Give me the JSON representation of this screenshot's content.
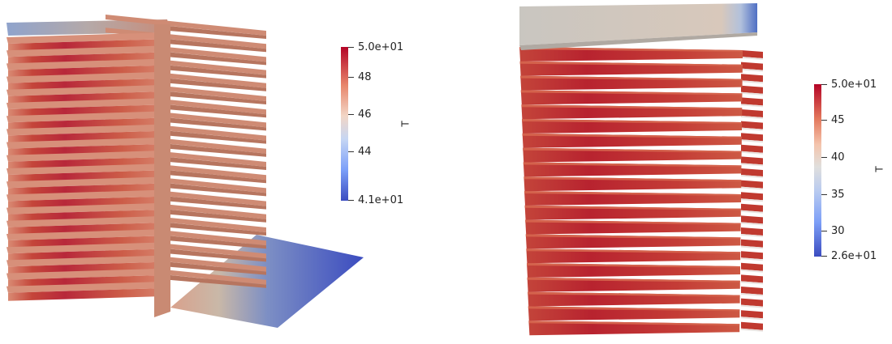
{
  "left_view": {
    "colorbar": {
      "title": "T",
      "ticks": [
        "5.0e+01",
        "48",
        "46",
        "44",
        "4.1e+01"
      ],
      "colors": [
        "#b40426",
        "#f7f7f7",
        "#3b4cc0"
      ]
    }
  },
  "right_view": {
    "colorbar": {
      "title": "T",
      "ticks": [
        "5.0e+01",
        "45",
        "40",
        "35",
        "30",
        "2.6e+01"
      ],
      "colors": [
        "#b40426",
        "#dddddd",
        "#3b4cc0"
      ]
    }
  }
}
